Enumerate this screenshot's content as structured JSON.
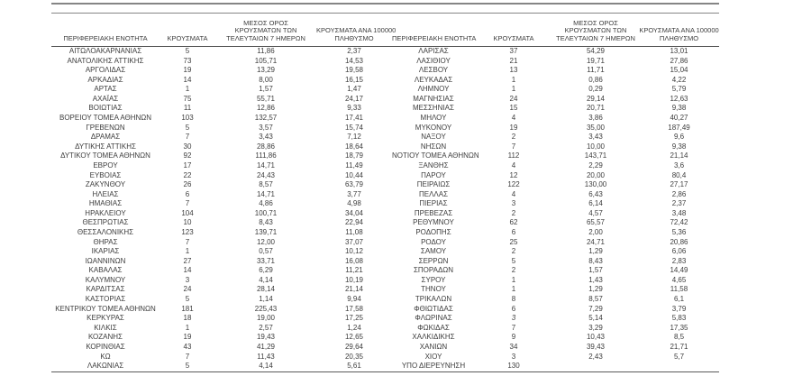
{
  "page": {
    "background": "#ffffff",
    "text_color": "#3d3d3d",
    "rule_color": "#858585",
    "header_rule_color": "#4d4d4d"
  },
  "table": {
    "headers": {
      "region": "ΠΕΡΙΦΕΡΕΙΑΚΗ ΕΝΟΤΗΤΑ",
      "cases": "ΚΡΟΥΣΜΑΤΑ",
      "avg_7day_lines": [
        "ΜΕΣΟΣ ΟΡΟΣ",
        "ΚΡΟΥΣΜΑΤΩΝ ΤΩΝ",
        "ΤΕΛΕΥΤΑΙΩΝ 7 ΗΜΕΡΩΝ"
      ],
      "per_100k_lines": [
        "ΚΡΟΥΣΜΑΤΑ ΑΝΑ 100000",
        "ΠΛΗΘΥΣΜΟ"
      ]
    },
    "left_rows": [
      [
        "ΑΙΤΩΛΟΑΚΑΡΝΑΝΙΑΣ",
        "5",
        "11,86",
        "2,37"
      ],
      [
        "ΑΝΑΤΟΛΙΚΗΣ ΑΤΤΙΚΗΣ",
        "73",
        "105,71",
        "14,53"
      ],
      [
        "ΑΡΓΟΛΙΔΑΣ",
        "19",
        "13,29",
        "19,58"
      ],
      [
        "ΑΡΚΑΔΙΑΣ",
        "14",
        "8,00",
        "16,15"
      ],
      [
        "ΑΡΤΑΣ",
        "1",
        "1,57",
        "1,47"
      ],
      [
        "ΑΧΑΪΑΣ",
        "75",
        "55,71",
        "24,17"
      ],
      [
        "ΒΟΙΩΤΙΑΣ",
        "11",
        "12,86",
        "9,33"
      ],
      [
        "ΒΟΡΕΙΟΥ ΤΟΜΕΑ ΑΘΗΝΩΝ",
        "103",
        "132,57",
        "17,41"
      ],
      [
        "ΓΡΕΒΕΝΩΝ",
        "5",
        "3,57",
        "15,74"
      ],
      [
        "ΔΡΑΜΑΣ",
        "7",
        "3,43",
        "7,12"
      ],
      [
        "ΔΥΤΙΚΗΣ ΑΤΤΙΚΗΣ",
        "30",
        "28,86",
        "18,64"
      ],
      [
        "ΔΥΤΙΚΟΥ ΤΟΜΕΑ ΑΘΗΝΩΝ",
        "92",
        "111,86",
        "18,79"
      ],
      [
        "ΕΒΡΟΥ",
        "17",
        "14,71",
        "11,49"
      ],
      [
        "ΕΥΒΟΙΑΣ",
        "22",
        "24,43",
        "10,44"
      ],
      [
        "ΖΑΚΥΝΘΟΥ",
        "26",
        "8,57",
        "63,79"
      ],
      [
        "ΗΛΕΙΑΣ",
        "6",
        "14,71",
        "3,77"
      ],
      [
        "ΗΜΑΘΙΑΣ",
        "7",
        "4,86",
        "4,98"
      ],
      [
        "ΗΡΑΚΛΕΙΟΥ",
        "104",
        "100,71",
        "34,04"
      ],
      [
        "ΘΕΣΠΡΩΤΙΑΣ",
        "10",
        "8,43",
        "22,94"
      ],
      [
        "ΘΕΣΣΑΛΟΝΙΚΗΣ",
        "123",
        "139,71",
        "11,08"
      ],
      [
        "ΘΗΡΑΣ",
        "7",
        "12,00",
        "37,07"
      ],
      [
        "ΙΚΑΡΙΑΣ",
        "1",
        "0,57",
        "10,12"
      ],
      [
        "ΙΩΑΝΝΙΝΩΝ",
        "27",
        "33,71",
        "16,08"
      ],
      [
        "ΚΑΒΑΛΑΣ",
        "14",
        "6,29",
        "11,21"
      ],
      [
        "ΚΑΛΥΜΝΟΥ",
        "3",
        "4,14",
        "10,19"
      ],
      [
        "ΚΑΡΔΙΤΣΑΣ",
        "24",
        "28,14",
        "21,14"
      ],
      [
        "ΚΑΣΤΟΡΙΑΣ",
        "5",
        "1,14",
        "9,94"
      ],
      [
        "ΚΕΝΤΡΙΚΟΥ ΤΟΜΕΑ ΑΘΗΝΩΝ",
        "181",
        "225,43",
        "17,58"
      ],
      [
        "ΚΕΡΚΥΡΑΣ",
        "18",
        "19,00",
        "17,25"
      ],
      [
        "ΚΙΛΚΙΣ",
        "1",
        "2,57",
        "1,24"
      ],
      [
        "ΚΟΖΑΝΗΣ",
        "19",
        "19,43",
        "12,65"
      ],
      [
        "ΚΟΡΙΝΘΙΑΣ",
        "43",
        "41,29",
        "29,64"
      ],
      [
        "ΚΩ",
        "7",
        "11,43",
        "20,35"
      ],
      [
        "ΛΑΚΩΝΙΑΣ",
        "5",
        "4,14",
        "5,61"
      ]
    ],
    "right_rows": [
      [
        "ΛΑΡΙΣΑΣ",
        "37",
        "54,29",
        "13,01"
      ],
      [
        "ΛΑΣΙΘΙΟΥ",
        "21",
        "19,71",
        "27,86"
      ],
      [
        "ΛΕΣΒΟΥ",
        "13",
        "11,71",
        "15,04"
      ],
      [
        "ΛΕΥΚΑΔΑΣ",
        "1",
        "0,86",
        "4,22"
      ],
      [
        "ΛΗΜΝΟΥ",
        "1",
        "0,29",
        "5,79"
      ],
      [
        "ΜΑΓΝΗΣΙΑΣ",
        "24",
        "29,14",
        "12,63"
      ],
      [
        "ΜΕΣΣΗΝΙΑΣ",
        "15",
        "20,71",
        "9,38"
      ],
      [
        "ΜΗΛΟΥ",
        "4",
        "3,86",
        "40,27"
      ],
      [
        "ΜΥΚΟΝΟΥ",
        "19",
        "35,00",
        "187,49"
      ],
      [
        "ΝΑΞΟΥ",
        "2",
        "3,43",
        "9,6"
      ],
      [
        "ΝΗΣΩΝ",
        "7",
        "10,00",
        "9,38"
      ],
      [
        "ΝΟΤΙΟΥ ΤΟΜΕΑ ΑΘΗΝΩΝ",
        "112",
        "143,71",
        "21,14"
      ],
      [
        "ΞΑΝΘΗΣ",
        "4",
        "2,29",
        "3,6"
      ],
      [
        "ΠΑΡΟΥ",
        "12",
        "20,00",
        "80,4"
      ],
      [
        "ΠΕΙΡΑΙΩΣ",
        "122",
        "130,00",
        "27,17"
      ],
      [
        "ΠΕΛΛΑΣ",
        "4",
        "6,43",
        "2,86"
      ],
      [
        "ΠΙΕΡΙΑΣ",
        "3",
        "6,14",
        "2,37"
      ],
      [
        "ΠΡΕΒΕΖΑΣ",
        "2",
        "4,57",
        "3,48"
      ],
      [
        "ΡΕΘΥΜΝΟΥ",
        "62",
        "65,57",
        "72,42"
      ],
      [
        "ΡΟΔΟΠΗΣ",
        "6",
        "2,00",
        "5,36"
      ],
      [
        "ΡΟΔΟΥ",
        "25",
        "24,71",
        "20,86"
      ],
      [
        "ΣΑΜΟΥ",
        "2",
        "1,29",
        "6,06"
      ],
      [
        "ΣΕΡΡΩΝ",
        "5",
        "8,43",
        "2,83"
      ],
      [
        "ΣΠΟΡΑΔΩΝ",
        "2",
        "1,57",
        "14,49"
      ],
      [
        "ΣΥΡΟΥ",
        "1",
        "1,43",
        "4,65"
      ],
      [
        "ΤΗΝΟΥ",
        "1",
        "1,29",
        "11,58"
      ],
      [
        "ΤΡΙΚΑΛΩΝ",
        "8",
        "8,57",
        "6,1"
      ],
      [
        "ΦΘΙΩΤΙΔΑΣ",
        "6",
        "7,29",
        "3,79"
      ],
      [
        "ΦΛΩΡΙΝΑΣ",
        "3",
        "5,14",
        "5,83"
      ],
      [
        "ΦΩΚΙΔΑΣ",
        "7",
        "3,29",
        "17,35"
      ],
      [
        "ΧΑΛΚΙΔΙΚΗΣ",
        "9",
        "10,43",
        "8,5"
      ],
      [
        "ΧΑΝΙΩΝ",
        "34",
        "39,43",
        "21,71"
      ],
      [
        "ΧΙΟΥ",
        "3",
        "2,43",
        "5,7"
      ],
      [
        "ΥΠΟ ΔΙΕΡΕΥΝΗΣΗ",
        "130",
        "",
        ""
      ]
    ],
    "italic_cells": [
      {
        "side": "right",
        "row": 28,
        "col": 1
      }
    ]
  }
}
